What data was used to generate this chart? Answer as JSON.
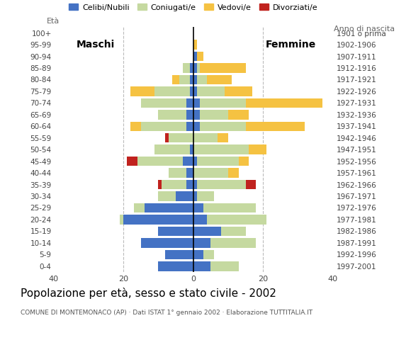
{
  "age_groups": [
    "0-4",
    "5-9",
    "10-14",
    "15-19",
    "20-24",
    "25-29",
    "30-34",
    "35-39",
    "40-44",
    "45-49",
    "50-54",
    "55-59",
    "60-64",
    "65-69",
    "70-74",
    "75-79",
    "80-84",
    "85-89",
    "90-94",
    "95-99",
    "100+"
  ],
  "birth_years": [
    "1997-2001",
    "1992-1996",
    "1987-1991",
    "1982-1986",
    "1977-1981",
    "1972-1976",
    "1967-1971",
    "1962-1966",
    "1957-1961",
    "1952-1956",
    "1947-1951",
    "1942-1946",
    "1937-1941",
    "1932-1936",
    "1927-1931",
    "1922-1926",
    "1917-1921",
    "1912-1916",
    "1907-1911",
    "1902-1906",
    "1901 o prima"
  ],
  "colors": {
    "celibi": "#4472c4",
    "coniugati": "#c5d9a0",
    "vedovi": "#f5c242",
    "divorziati": "#c0221e"
  },
  "males": {
    "celibi": [
      10,
      8,
      15,
      10,
      20,
      14,
      5,
      2,
      2,
      3,
      1,
      0,
      2,
      2,
      2,
      1,
      1,
      1,
      0,
      0,
      0
    ],
    "coniugati": [
      0,
      0,
      0,
      0,
      1,
      3,
      5,
      7,
      5,
      13,
      10,
      7,
      13,
      8,
      13,
      10,
      3,
      2,
      0,
      0,
      0
    ],
    "vedovi": [
      0,
      0,
      0,
      0,
      0,
      0,
      0,
      0,
      0,
      0,
      0,
      0,
      3,
      0,
      0,
      7,
      2,
      0,
      0,
      0,
      0
    ],
    "divorziati": [
      0,
      0,
      0,
      0,
      0,
      0,
      0,
      1,
      0,
      3,
      0,
      1,
      0,
      0,
      0,
      0,
      0,
      0,
      0,
      0,
      0
    ]
  },
  "females": {
    "celibi": [
      5,
      3,
      5,
      8,
      4,
      3,
      1,
      1,
      0,
      1,
      0,
      0,
      2,
      2,
      2,
      1,
      1,
      1,
      1,
      0,
      0
    ],
    "coniugati": [
      8,
      3,
      13,
      7,
      17,
      15,
      5,
      14,
      10,
      12,
      16,
      7,
      13,
      8,
      13,
      8,
      3,
      1,
      0,
      0,
      0
    ],
    "vedovi": [
      0,
      0,
      0,
      0,
      0,
      0,
      0,
      0,
      3,
      3,
      5,
      3,
      17,
      6,
      22,
      8,
      7,
      13,
      2,
      1,
      0
    ],
    "divorziati": [
      0,
      0,
      0,
      0,
      0,
      0,
      0,
      3,
      0,
      0,
      0,
      0,
      0,
      0,
      0,
      0,
      0,
      0,
      0,
      0,
      0
    ]
  },
  "xlim": 40,
  "title": "Popolazione per età, sesso e stato civile - 2002",
  "subtitle": "COMUNE DI MONTEMONACO (AP) · Dati ISTAT 1° gennaio 2002 · Elaborazione TUTTITALIA.IT",
  "legend_labels": [
    "Celibi/Nubili",
    "Coniugati/e",
    "Vedovi/e",
    "Divorziati/e"
  ],
  "background_color": "#ffffff",
  "grid_color": "#bbbbbb"
}
